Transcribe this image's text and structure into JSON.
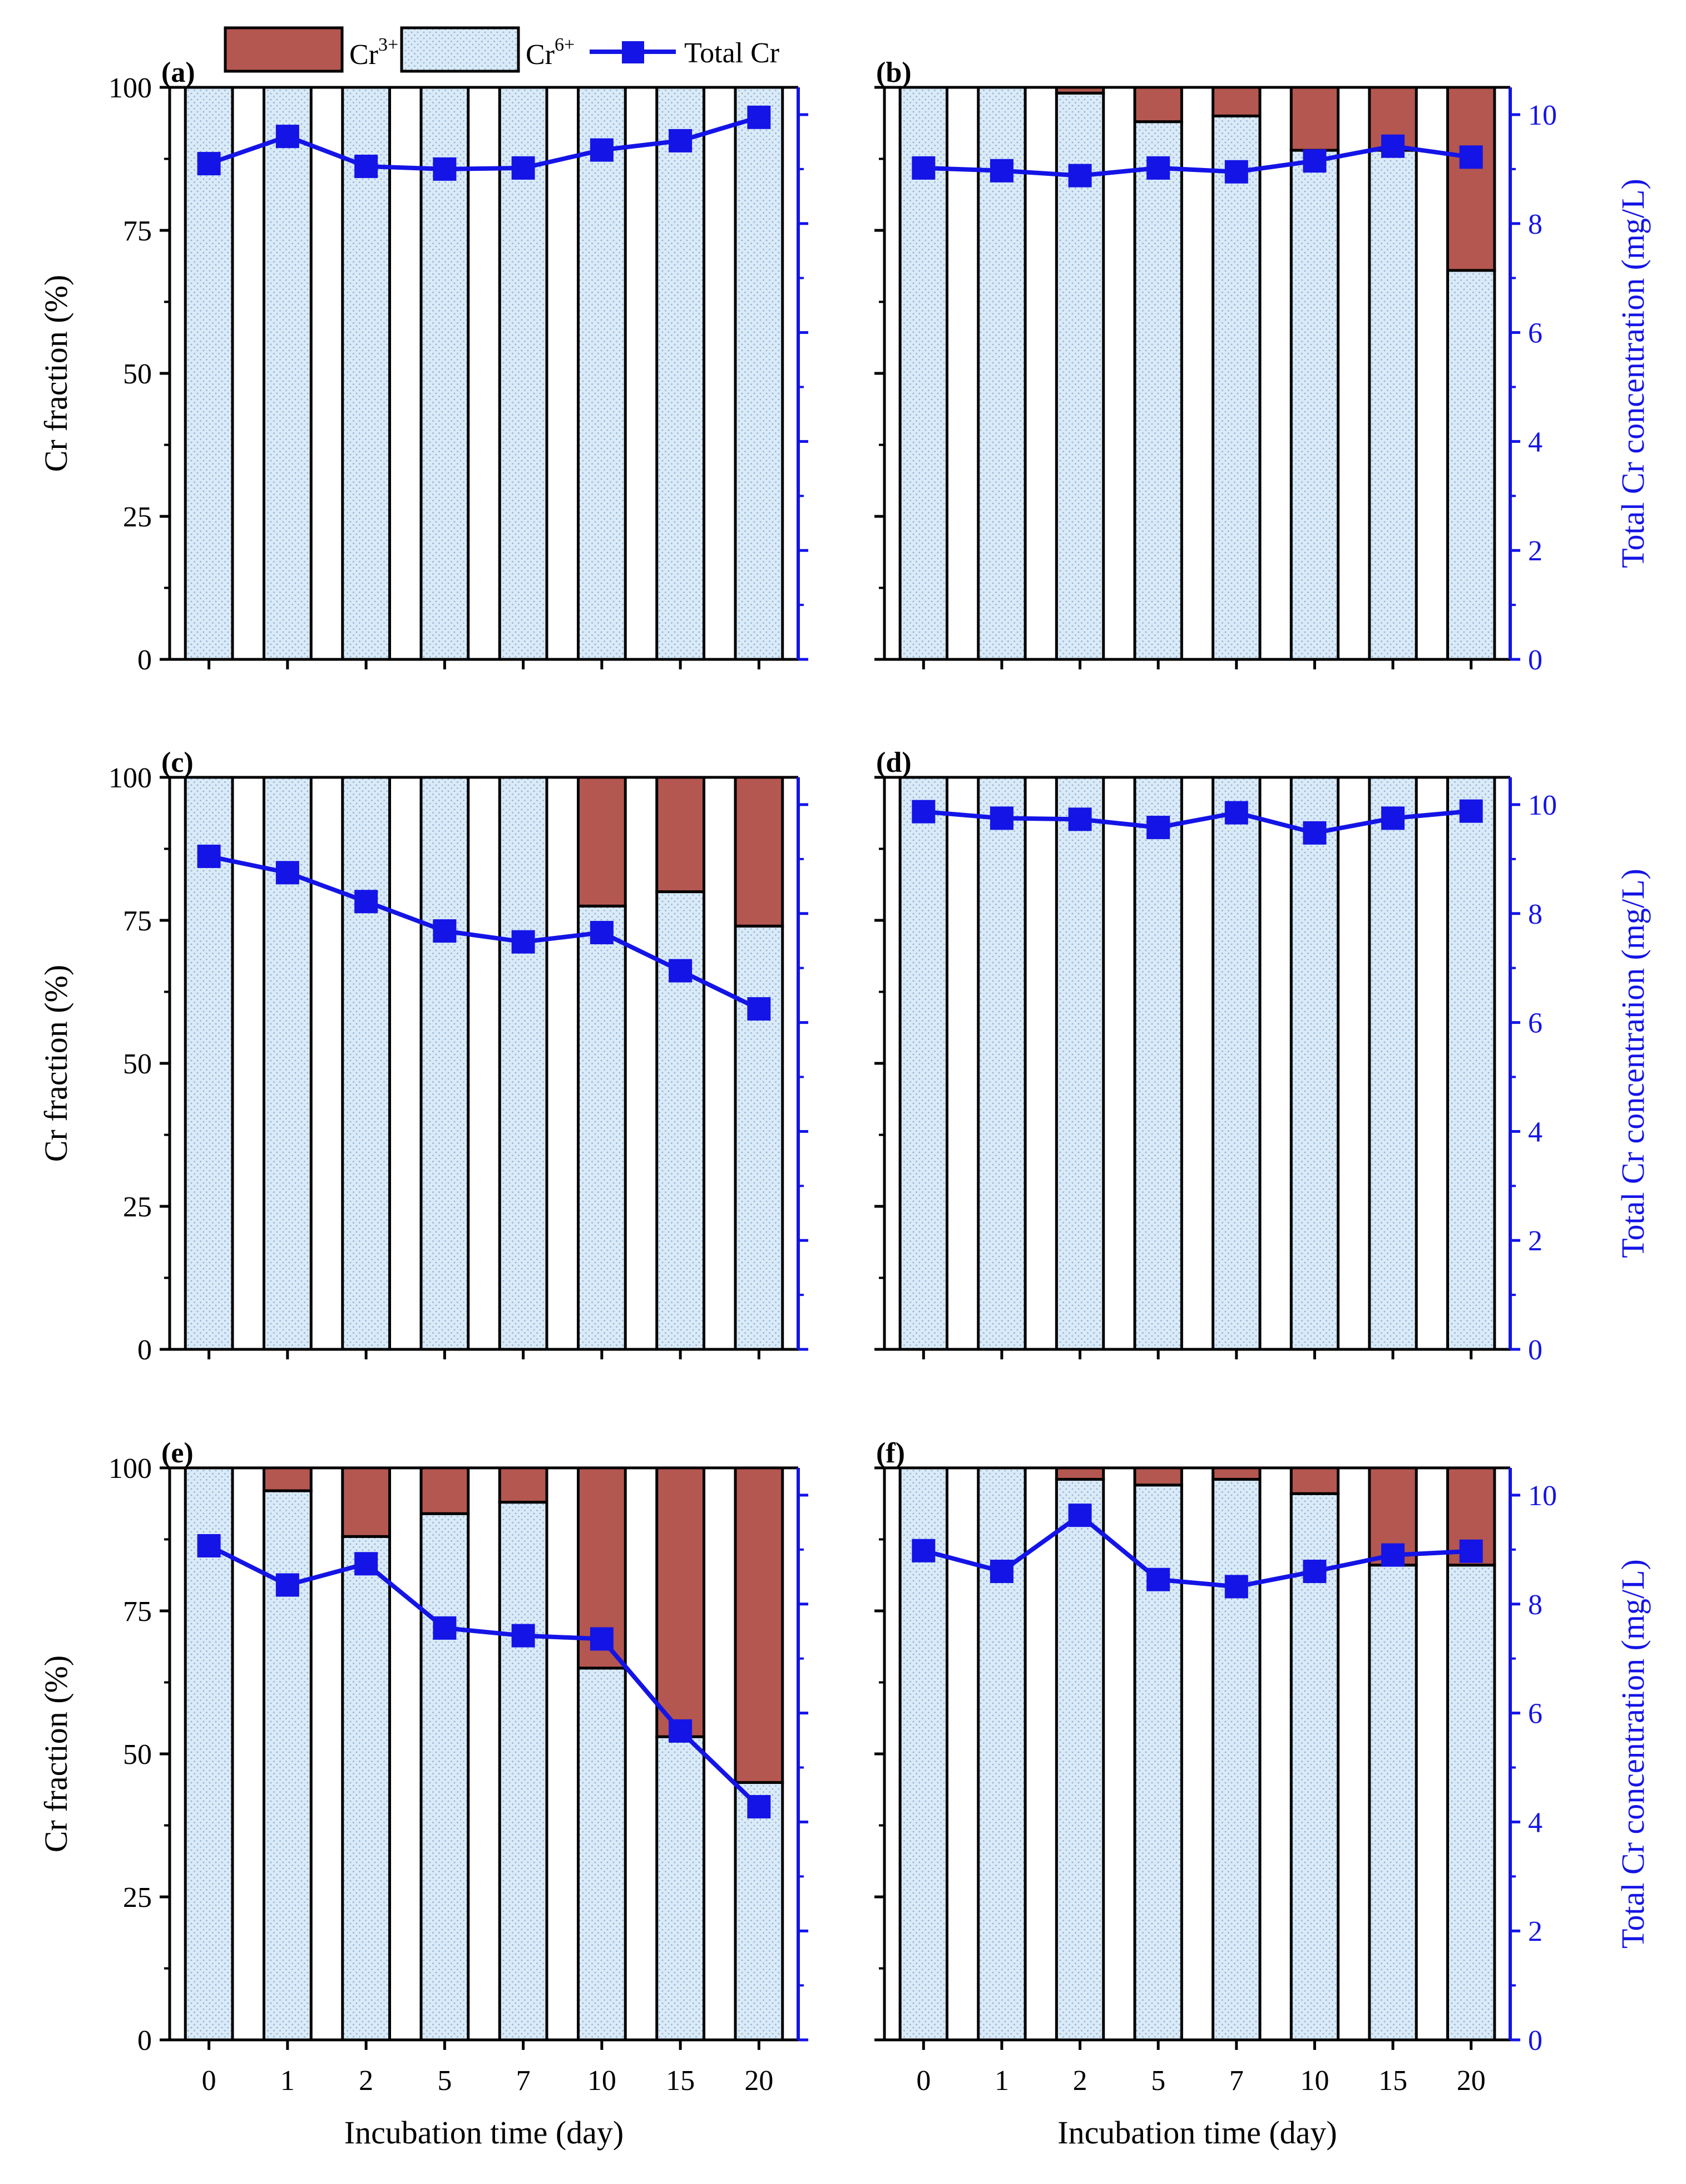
{
  "legend": {
    "items": [
      {
        "name": "Cr3+",
        "base": "Cr",
        "sup": "3+",
        "color": "#b45750"
      },
      {
        "name": "Cr6+",
        "base": "Cr",
        "sup": "6+",
        "color": "#daeaf7"
      },
      {
        "name": "Total Cr",
        "label": "Total Cr",
        "color": "#1414e6"
      }
    ]
  },
  "axes": {
    "left_label": "Cr fraction (%)",
    "right_label": "Total Cr concentration (mg/L)",
    "x_label": "Incubation time (day)",
    "left_ticks": [
      "0",
      "25",
      "50",
      "75",
      "100"
    ],
    "right_ticks": [
      "0",
      "2",
      "4",
      "6",
      "8",
      "10"
    ],
    "left_range": [
      0,
      100
    ],
    "right_range": [
      0,
      10.5
    ]
  },
  "chart_data": [
    {
      "type": "bar",
      "panel": "(a)",
      "categories": [
        "0",
        "1",
        "2",
        "5",
        "7",
        "10",
        "15",
        "20"
      ],
      "series": [
        {
          "name": "Cr6+",
          "values": [
            100,
            100,
            100,
            100,
            100,
            100,
            100,
            100
          ]
        },
        {
          "name": "Cr3+",
          "values": [
            0,
            0,
            0,
            0,
            0,
            0,
            0,
            0
          ]
        },
        {
          "name": "Total Cr",
          "axis": "right",
          "values": [
            9.1,
            9.6,
            9.05,
            9.0,
            9.02,
            9.35,
            9.52,
            9.95
          ]
        }
      ],
      "ylabel": "Cr fraction (%)",
      "ylim": [
        0,
        100
      ],
      "y2label": "Total Cr concentration (mg/L)",
      "y2lim": [
        0,
        10.5
      ]
    },
    {
      "type": "bar",
      "panel": "(b)",
      "categories": [
        "0",
        "1",
        "2",
        "5",
        "7",
        "10",
        "15",
        "20"
      ],
      "series": [
        {
          "name": "Cr6+",
          "values": [
            100,
            100,
            99,
            94,
            95,
            89,
            89,
            68
          ]
        },
        {
          "name": "Cr3+",
          "values": [
            0,
            0,
            1,
            6,
            5,
            11,
            11,
            32
          ]
        },
        {
          "name": "Total Cr",
          "axis": "right",
          "values": [
            9.02,
            8.97,
            8.88,
            9.02,
            8.95,
            9.15,
            9.42,
            9.22
          ]
        }
      ],
      "ylabel": "Cr fraction (%)",
      "ylim": [
        0,
        100
      ],
      "y2label": "Total Cr concentration (mg/L)",
      "y2lim": [
        0,
        10.5
      ]
    },
    {
      "type": "bar",
      "panel": "(c)",
      "categories": [
        "0",
        "1",
        "2",
        "5",
        "7",
        "10",
        "15",
        "20"
      ],
      "series": [
        {
          "name": "Cr6+",
          "values": [
            100,
            100,
            100,
            100,
            100,
            77.5,
            80,
            74
          ]
        },
        {
          "name": "Cr3+",
          "values": [
            0,
            0,
            0,
            0,
            0,
            22.5,
            20,
            26
          ]
        },
        {
          "name": "Total Cr",
          "axis": "right",
          "values": [
            9.05,
            8.75,
            8.22,
            7.68,
            7.48,
            7.65,
            6.95,
            6.25
          ]
        }
      ],
      "ylabel": "Cr fraction (%)",
      "ylim": [
        0,
        100
      ],
      "y2label": "Total Cr concentration (mg/L)",
      "y2lim": [
        0,
        10.5
      ]
    },
    {
      "type": "bar",
      "panel": "(d)",
      "categories": [
        "0",
        "1",
        "2",
        "5",
        "7",
        "10",
        "15",
        "20"
      ],
      "series": [
        {
          "name": "Cr6+",
          "values": [
            100,
            100,
            100,
            100,
            100,
            100,
            100,
            100
          ]
        },
        {
          "name": "Cr3+",
          "values": [
            0,
            0,
            0,
            0,
            0,
            0,
            0,
            0
          ]
        },
        {
          "name": "Total Cr",
          "axis": "right",
          "values": [
            9.87,
            9.75,
            9.73,
            9.58,
            9.85,
            9.48,
            9.75,
            9.88
          ]
        }
      ],
      "ylabel": "Cr fraction (%)",
      "ylim": [
        0,
        100
      ],
      "y2label": "Total Cr concentration (mg/L)",
      "y2lim": [
        0,
        10.5
      ]
    },
    {
      "type": "bar",
      "panel": "(e)",
      "categories": [
        "0",
        "1",
        "2",
        "5",
        "7",
        "10",
        "15",
        "20"
      ],
      "series": [
        {
          "name": "Cr6+",
          "values": [
            100,
            96,
            88,
            92,
            94,
            65,
            53,
            45
          ]
        },
        {
          "name": "Cr3+",
          "values": [
            0,
            4,
            12,
            8,
            6,
            35,
            47,
            55
          ]
        },
        {
          "name": "Total Cr",
          "axis": "right",
          "values": [
            9.07,
            8.35,
            8.74,
            7.56,
            7.42,
            7.36,
            5.67,
            4.28
          ]
        }
      ],
      "ylabel": "Cr fraction (%)",
      "ylim": [
        0,
        100
      ],
      "y2label": "Total Cr concentration (mg/L)",
      "y2lim": [
        0,
        10.5
      ]
    },
    {
      "type": "bar",
      "panel": "(f)",
      "categories": [
        "0",
        "1",
        "2",
        "5",
        "7",
        "10",
        "15",
        "20"
      ],
      "series": [
        {
          "name": "Cr6+",
          "values": [
            100,
            100,
            98,
            97,
            98,
            95.5,
            83,
            83
          ]
        },
        {
          "name": "Cr3+",
          "values": [
            0,
            0,
            2,
            3,
            2,
            4.5,
            17,
            17
          ]
        },
        {
          "name": "Total Cr",
          "axis": "right",
          "values": [
            8.98,
            8.6,
            9.63,
            8.45,
            8.32,
            8.6,
            8.9,
            8.97
          ]
        }
      ],
      "ylabel": "Cr fraction (%)",
      "ylim": [
        0,
        100
      ],
      "y2label": "Total Cr concentration (mg/L)",
      "y2lim": [
        0,
        10.5
      ]
    }
  ]
}
